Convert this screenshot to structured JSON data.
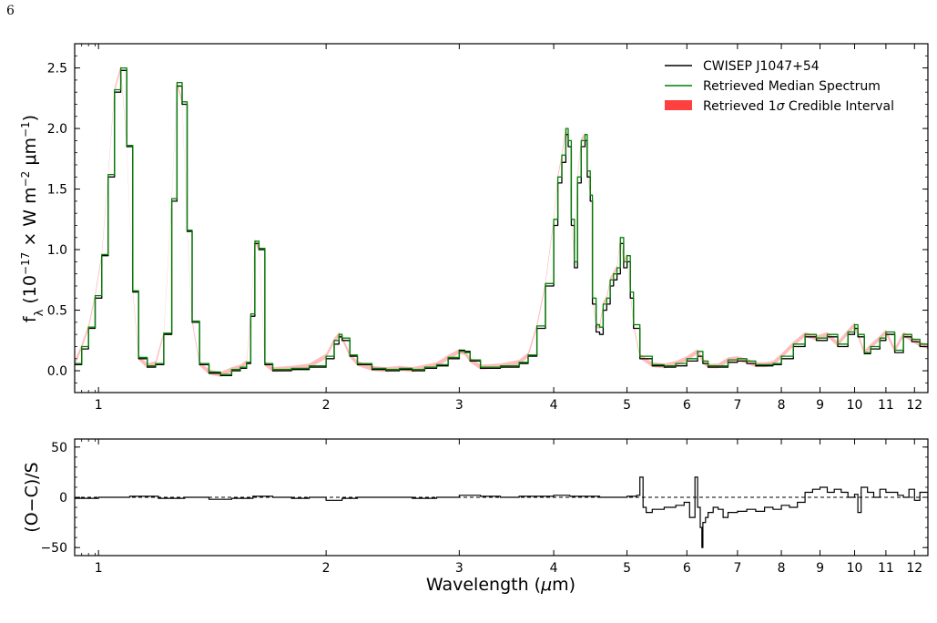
{
  "page_number": "6",
  "chart_data": [
    {
      "type": "line",
      "panel": "spectrum",
      "xlabel": "",
      "ylabel": "f_λ (10^-17 × W m^-2 μm^-1)",
      "ylabel_parts": {
        "base": "f",
        "sub": "λ",
        "a": " (10",
        "sup1": "−17",
        "b": " × W m",
        "sup2": "−2",
        "c": " μm",
        "sup3": "−1",
        "d": ")"
      },
      "x_scale": "log",
      "xlim": [
        0.93,
        12.5
      ],
      "ylim": [
        -0.18,
        2.7
      ],
      "x_ticks": [
        1,
        2,
        3,
        4,
        5,
        6,
        7,
        8,
        9,
        10,
        11,
        12
      ],
      "x_tick_labels": [
        "1",
        "2",
        "3",
        "4",
        "5",
        "6",
        "7",
        "8",
        "9",
        "10",
        "11",
        "12"
      ],
      "y_ticks": [
        0.0,
        0.5,
        1.0,
        1.5,
        2.0,
        2.5
      ],
      "y_tick_labels": [
        "0.0",
        "0.5",
        "1.0",
        "1.5",
        "2.0",
        "2.5"
      ],
      "legend_position": "top-right",
      "legend": [
        {
          "label": "CWISEP J1047+54",
          "color": "#000000",
          "kind": "line"
        },
        {
          "label": "Retrieved Median Spectrum",
          "color": "#008000",
          "kind": "line"
        },
        {
          "label": "Retrieved 1σ Credible Interval",
          "color": "#ff4040",
          "kind": "patch",
          "label_parts": [
            "Retrieved 1",
            "σ",
            " Credible Interval"
          ]
        }
      ],
      "series": [
        {
          "name": "CWISEP J1047+54",
          "color": "#000000",
          "x": [
            0.93,
            0.95,
            0.97,
            0.99,
            1.01,
            1.03,
            1.05,
            1.07,
            1.09,
            1.11,
            1.13,
            1.16,
            1.19,
            1.22,
            1.25,
            1.27,
            1.29,
            1.31,
            1.33,
            1.36,
            1.4,
            1.45,
            1.5,
            1.54,
            1.57,
            1.59,
            1.61,
            1.63,
            1.66,
            1.7,
            1.8,
            1.9,
            2.0,
            2.05,
            2.08,
            2.1,
            2.15,
            2.2,
            2.3,
            2.4,
            2.5,
            2.6,
            2.7,
            2.8,
            2.9,
            3.0,
            3.05,
            3.1,
            3.2,
            3.4,
            3.6,
            3.7,
            3.8,
            3.9,
            4.0,
            4.05,
            4.1,
            4.15,
            4.18,
            4.22,
            4.26,
            4.3,
            4.35,
            4.4,
            4.43,
            4.47,
            4.5,
            4.55,
            4.6,
            4.65,
            4.7,
            4.75,
            4.8,
            4.85,
            4.9,
            4.95,
            5.0,
            5.05,
            5.1,
            5.2,
            5.4,
            5.6,
            5.8,
            6.0,
            6.2,
            6.3,
            6.4,
            6.6,
            6.8,
            7.0,
            7.2,
            7.4,
            7.6,
            7.8,
            8.0,
            8.3,
            8.6,
            8.9,
            9.2,
            9.5,
            9.8,
            10.0,
            10.1,
            10.3,
            10.5,
            10.8,
            11.0,
            11.3,
            11.6,
            11.9,
            12.2,
            12.5
          ],
          "y": [
            0.05,
            0.18,
            0.35,
            0.6,
            0.95,
            1.6,
            2.3,
            2.48,
            1.85,
            0.65,
            0.1,
            0.03,
            0.05,
            0.3,
            1.4,
            2.35,
            2.2,
            1.15,
            0.4,
            0.05,
            -0.02,
            -0.04,
            0.0,
            0.02,
            0.06,
            0.45,
            1.05,
            1.0,
            0.05,
            0.0,
            0.01,
            0.03,
            0.1,
            0.22,
            0.28,
            0.25,
            0.12,
            0.05,
            0.01,
            0.0,
            0.01,
            0.0,
            0.02,
            0.04,
            0.1,
            0.17,
            0.16,
            0.08,
            0.02,
            0.03,
            0.06,
            0.12,
            0.35,
            0.7,
            1.2,
            1.55,
            1.72,
            1.95,
            1.85,
            1.2,
            0.85,
            1.55,
            1.85,
            1.9,
            1.6,
            1.4,
            0.55,
            0.32,
            0.3,
            0.5,
            0.55,
            0.7,
            0.75,
            0.8,
            1.05,
            0.85,
            0.9,
            0.6,
            0.35,
            0.1,
            0.04,
            0.03,
            0.04,
            0.08,
            0.12,
            0.06,
            0.03,
            0.03,
            0.07,
            0.08,
            0.06,
            0.04,
            0.04,
            0.05,
            0.1,
            0.2,
            0.28,
            0.25,
            0.28,
            0.2,
            0.3,
            0.35,
            0.28,
            0.14,
            0.18,
            0.25,
            0.3,
            0.15,
            0.28,
            0.24,
            0.2,
            0.18
          ]
        },
        {
          "name": "Retrieved Median Spectrum",
          "color": "#008000",
          "x": [
            0.93,
            0.95,
            0.97,
            0.99,
            1.01,
            1.03,
            1.05,
            1.07,
            1.09,
            1.11,
            1.13,
            1.16,
            1.19,
            1.22,
            1.25,
            1.27,
            1.29,
            1.31,
            1.33,
            1.36,
            1.4,
            1.45,
            1.5,
            1.54,
            1.57,
            1.59,
            1.61,
            1.63,
            1.66,
            1.7,
            1.8,
            1.9,
            2.0,
            2.05,
            2.08,
            2.1,
            2.15,
            2.2,
            2.3,
            2.4,
            2.5,
            2.6,
            2.7,
            2.8,
            2.9,
            3.0,
            3.05,
            3.1,
            3.2,
            3.4,
            3.6,
            3.7,
            3.8,
            3.9,
            4.0,
            4.05,
            4.1,
            4.15,
            4.18,
            4.22,
            4.26,
            4.3,
            4.35,
            4.4,
            4.43,
            4.47,
            4.5,
            4.55,
            4.6,
            4.65,
            4.7,
            4.75,
            4.8,
            4.85,
            4.9,
            4.95,
            5.0,
            5.05,
            5.1,
            5.2,
            5.4,
            5.6,
            5.8,
            6.0,
            6.2,
            6.3,
            6.4,
            6.6,
            6.8,
            7.0,
            7.2,
            7.4,
            7.6,
            7.8,
            8.0,
            8.3,
            8.6,
            8.9,
            9.2,
            9.5,
            9.8,
            10.0,
            10.1,
            10.3,
            10.5,
            10.8,
            11.0,
            11.3,
            11.6,
            11.9,
            12.2,
            12.5
          ],
          "y": [
            0.06,
            0.2,
            0.36,
            0.62,
            0.96,
            1.62,
            2.32,
            2.5,
            1.86,
            0.66,
            0.11,
            0.04,
            0.06,
            0.31,
            1.42,
            2.38,
            2.22,
            1.16,
            0.41,
            0.06,
            -0.01,
            -0.03,
            0.01,
            0.03,
            0.07,
            0.47,
            1.07,
            1.01,
            0.06,
            0.01,
            0.02,
            0.04,
            0.12,
            0.25,
            0.3,
            0.27,
            0.13,
            0.06,
            0.02,
            0.01,
            0.02,
            0.01,
            0.03,
            0.05,
            0.11,
            0.16,
            0.15,
            0.09,
            0.03,
            0.04,
            0.07,
            0.13,
            0.37,
            0.72,
            1.25,
            1.6,
            1.78,
            2.0,
            1.9,
            1.25,
            0.9,
            1.6,
            1.9,
            1.95,
            1.65,
            1.45,
            0.6,
            0.38,
            0.36,
            0.55,
            0.6,
            0.75,
            0.8,
            0.85,
            1.1,
            0.9,
            0.95,
            0.65,
            0.38,
            0.12,
            0.05,
            0.04,
            0.06,
            0.1,
            0.16,
            0.08,
            0.04,
            0.04,
            0.09,
            0.1,
            0.08,
            0.05,
            0.05,
            0.06,
            0.12,
            0.22,
            0.3,
            0.27,
            0.3,
            0.22,
            0.32,
            0.38,
            0.3,
            0.15,
            0.2,
            0.27,
            0.32,
            0.17,
            0.3,
            0.26,
            0.22,
            0.2
          ]
        }
      ]
    },
    {
      "type": "line",
      "panel": "residuals",
      "xlabel": "Wavelength (μm)",
      "xlabel_parts": [
        "Wavelength (",
        "μ",
        "m)"
      ],
      "ylabel": "(O−C)/S",
      "x_scale": "log",
      "xlim": [
        0.93,
        12.5
      ],
      "ylim": [
        -58,
        58
      ],
      "x_ticks": [
        1,
        2,
        3,
        4,
        5,
        6,
        7,
        8,
        9,
        10,
        11,
        12
      ],
      "x_tick_labels": [
        "1",
        "2",
        "3",
        "4",
        "5",
        "6",
        "7",
        "8",
        "9",
        "10",
        "11",
        "12"
      ],
      "y_ticks": [
        -50,
        0,
        50
      ],
      "y_tick_labels": [
        "−50",
        "0",
        "50"
      ],
      "reference_line": 0,
      "series": [
        {
          "color": "#000000",
          "x": [
            0.93,
            1.0,
            1.1,
            1.2,
            1.3,
            1.4,
            1.5,
            1.6,
            1.7,
            1.8,
            1.9,
            2.0,
            2.1,
            2.2,
            2.4,
            2.6,
            2.8,
            3.0,
            3.2,
            3.4,
            3.6,
            3.8,
            4.0,
            4.2,
            4.4,
            4.6,
            4.8,
            5.0,
            5.15,
            5.2,
            5.25,
            5.3,
            5.4,
            5.6,
            5.8,
            5.95,
            6.05,
            6.15,
            6.2,
            6.25,
            6.28,
            6.3,
            6.35,
            6.4,
            6.5,
            6.6,
            6.7,
            6.8,
            7.0,
            7.2,
            7.4,
            7.6,
            7.8,
            8.0,
            8.2,
            8.4,
            8.6,
            8.8,
            9.0,
            9.2,
            9.4,
            9.6,
            9.8,
            10.0,
            10.1,
            10.2,
            10.4,
            10.6,
            10.8,
            11.0,
            11.2,
            11.4,
            11.6,
            11.8,
            12.0,
            12.2,
            12.5
          ],
          "y": [
            -1,
            0,
            1,
            -1,
            0,
            -2,
            -1,
            1,
            0,
            -1,
            0,
            -3,
            -1,
            0,
            0,
            -1,
            0,
            2,
            1,
            0,
            1,
            1,
            2,
            1,
            1,
            0,
            0,
            1,
            2,
            20,
            -10,
            -15,
            -12,
            -10,
            -8,
            -5,
            -20,
            20,
            -10,
            -30,
            -50,
            -25,
            -20,
            -15,
            -10,
            -12,
            -20,
            -15,
            -14,
            -12,
            -14,
            -10,
            -12,
            -8,
            -10,
            -5,
            5,
            8,
            10,
            5,
            8,
            5,
            0,
            3,
            -15,
            10,
            5,
            0,
            8,
            5,
            5,
            2,
            0,
            8,
            -3,
            5,
            -5
          ]
        }
      ]
    }
  ]
}
